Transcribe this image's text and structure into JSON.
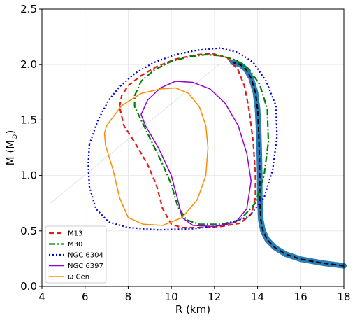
{
  "chart_data": {
    "type": "line",
    "title": "",
    "xlabel": "R (km)",
    "ylabel": "M (M",
    "ylabel_sub": "⊙",
    "ylabel_close": ")",
    "xlim": [
      4,
      18
    ],
    "ylim": [
      0,
      2.5
    ],
    "xticks": [
      "4",
      "6",
      "8",
      "10",
      "12",
      "14",
      "16",
      "18"
    ],
    "yticks": [
      "0.0",
      "0.5",
      "1.0",
      "1.5",
      "2.0",
      "2.5"
    ],
    "grid": true,
    "legend_position": "lower-left",
    "eos_curve": {
      "color": "#1f77b4",
      "points": [
        [
          18.0,
          0.185
        ],
        [
          17.0,
          0.21
        ],
        [
          16.0,
          0.245
        ],
        [
          15.3,
          0.29
        ],
        [
          14.8,
          0.35
        ],
        [
          14.45,
          0.42
        ],
        [
          14.25,
          0.5
        ],
        [
          14.15,
          0.6
        ],
        [
          14.1,
          0.8
        ],
        [
          14.1,
          1.0
        ],
        [
          14.08,
          1.2
        ],
        [
          14.05,
          1.4
        ],
        [
          14.0,
          1.6
        ],
        [
          13.9,
          1.75
        ],
        [
          13.7,
          1.88
        ],
        [
          13.45,
          1.96
        ],
        [
          13.2,
          2.0
        ],
        [
          12.85,
          2.02
        ]
      ]
    },
    "series": [
      {
        "name": "M13",
        "color": "#e41a1c",
        "style": "dashed",
        "points": [
          [
            7.6,
            1.62
          ],
          [
            7.7,
            1.72
          ],
          [
            8.0,
            1.81
          ],
          [
            8.6,
            1.9
          ],
          [
            9.3,
            1.98
          ],
          [
            10.2,
            2.05
          ],
          [
            11.2,
            2.09
          ],
          [
            11.9,
            2.1
          ],
          [
            12.6,
            2.06
          ],
          [
            13.1,
            1.95
          ],
          [
            13.4,
            1.8
          ],
          [
            13.6,
            1.6
          ],
          [
            13.8,
            1.3
          ],
          [
            13.9,
            1.0
          ],
          [
            13.9,
            0.8
          ],
          [
            13.7,
            0.65
          ],
          [
            13.2,
            0.57
          ],
          [
            12.3,
            0.54
          ],
          [
            11.2,
            0.53
          ],
          [
            10.5,
            0.53
          ],
          [
            10.0,
            0.56
          ],
          [
            9.6,
            0.7
          ],
          [
            9.3,
            0.92
          ],
          [
            8.9,
            1.1
          ],
          [
            8.3,
            1.3
          ],
          [
            7.8,
            1.45
          ],
          [
            7.6,
            1.62
          ]
        ]
      },
      {
        "name": "M30",
        "color": "#008000",
        "style": "dashdot",
        "points": [
          [
            8.3,
            1.72
          ],
          [
            8.6,
            1.85
          ],
          [
            9.2,
            1.95
          ],
          [
            10.0,
            2.03
          ],
          [
            10.8,
            2.07
          ],
          [
            11.6,
            2.09
          ],
          [
            12.3,
            2.08
          ],
          [
            13.0,
            2.04
          ],
          [
            13.6,
            1.96
          ],
          [
            14.1,
            1.82
          ],
          [
            14.45,
            1.6
          ],
          [
            14.5,
            1.3
          ],
          [
            14.3,
            1.0
          ],
          [
            13.9,
            0.75
          ],
          [
            13.2,
            0.6
          ],
          [
            12.3,
            0.56
          ],
          [
            11.3,
            0.56
          ],
          [
            10.7,
            0.6
          ],
          [
            10.3,
            0.72
          ],
          [
            10.0,
            0.92
          ],
          [
            9.6,
            1.1
          ],
          [
            9.1,
            1.3
          ],
          [
            8.6,
            1.5
          ],
          [
            8.3,
            1.62
          ],
          [
            8.3,
            1.72
          ]
        ]
      },
      {
        "name": "NGC 6304",
        "color": "#0000e0",
        "style": "dotted",
        "points": [
          [
            6.2,
            1.28
          ],
          [
            6.6,
            1.5
          ],
          [
            7.1,
            1.68
          ],
          [
            7.6,
            1.8
          ],
          [
            8.3,
            1.92
          ],
          [
            9.2,
            2.02
          ],
          [
            10.2,
            2.09
          ],
          [
            11.2,
            2.13
          ],
          [
            12.3,
            2.15
          ],
          [
            13.1,
            2.11
          ],
          [
            13.8,
            2.02
          ],
          [
            14.4,
            1.85
          ],
          [
            14.85,
            1.63
          ],
          [
            14.9,
            1.35
          ],
          [
            14.7,
            1.05
          ],
          [
            14.3,
            0.8
          ],
          [
            13.6,
            0.63
          ],
          [
            12.4,
            0.55
          ],
          [
            11.0,
            0.52
          ],
          [
            9.4,
            0.51
          ],
          [
            8.0,
            0.53
          ],
          [
            7.1,
            0.58
          ],
          [
            6.5,
            0.7
          ],
          [
            6.2,
            0.9
          ],
          [
            6.15,
            1.1
          ],
          [
            6.2,
            1.28
          ]
        ]
      },
      {
        "name": "NGC 6397",
        "color": "#9400d3",
        "style": "solid",
        "points": [
          [
            8.6,
            1.55
          ],
          [
            8.9,
            1.68
          ],
          [
            9.5,
            1.79
          ],
          [
            10.2,
            1.85
          ],
          [
            11.0,
            1.84
          ],
          [
            11.8,
            1.78
          ],
          [
            12.5,
            1.65
          ],
          [
            13.1,
            1.45
          ],
          [
            13.5,
            1.2
          ],
          [
            13.7,
            0.95
          ],
          [
            13.5,
            0.7
          ],
          [
            13.0,
            0.58
          ],
          [
            12.0,
            0.54
          ],
          [
            11.0,
            0.55
          ],
          [
            10.5,
            0.62
          ],
          [
            10.3,
            0.78
          ],
          [
            10.0,
            1.0
          ],
          [
            9.4,
            1.25
          ],
          [
            8.8,
            1.45
          ],
          [
            8.6,
            1.55
          ]
        ]
      },
      {
        "name": "ω Cen",
        "color": "#ff8c00",
        "style": "solid",
        "points": [
          [
            7.0,
            1.45
          ],
          [
            7.7,
            1.63
          ],
          [
            8.6,
            1.74
          ],
          [
            9.5,
            1.78
          ],
          [
            10.2,
            1.79
          ],
          [
            10.8,
            1.74
          ],
          [
            11.3,
            1.62
          ],
          [
            11.6,
            1.45
          ],
          [
            11.7,
            1.25
          ],
          [
            11.6,
            1.0
          ],
          [
            11.2,
            0.78
          ],
          [
            10.5,
            0.62
          ],
          [
            9.6,
            0.55
          ],
          [
            8.7,
            0.56
          ],
          [
            8.0,
            0.62
          ],
          [
            7.6,
            0.8
          ],
          [
            7.3,
            1.05
          ],
          [
            6.95,
            1.27
          ],
          [
            6.9,
            1.38
          ],
          [
            7.0,
            1.45
          ]
        ]
      }
    ],
    "thin_line": {
      "color": "#dddddd",
      "points": [
        [
          4.4,
          0.75
        ],
        [
          12.2,
          2.0
        ]
      ]
    }
  }
}
